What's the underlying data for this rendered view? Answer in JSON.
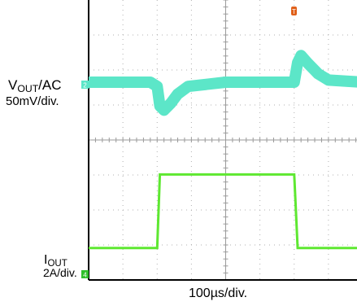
{
  "chart_data": [
    {
      "type": "line",
      "x": [
        -200,
        -110,
        -100,
        -96,
        -90,
        -80,
        -70,
        -55,
        0,
        75,
        100,
        105,
        110,
        120,
        135,
        150,
        200
      ],
      "xlabel": "100µs/div.",
      "xlim": [
        -200,
        200
      ],
      "ylim": [
        -400,
        400
      ],
      "grid": true,
      "series": [
        {
          "name": "VOUT/AC",
          "label_main": "V",
          "label_sub": "OUT",
          "label_suffix": "/AC",
          "scale": "50mV/div.",
          "channel": "2",
          "color": "#5ce6c8",
          "values": [
            0,
            0,
            -6,
            -34,
            -40,
            -30,
            -17,
            -6,
            0,
            0,
            0,
            28,
            38,
            27,
            12,
            3,
            0
          ]
        },
        {
          "name": "IOUT",
          "label_main": "I",
          "label_sub": "OUT",
          "scale": "2A/div.",
          "channel": "4",
          "color": "#5ee831",
          "values": [
            1.5,
            1.5,
            1.5,
            5.7,
            5.7,
            5.7,
            5.7,
            5.7,
            5.7,
            5.7,
            5.7,
            1.5,
            1.5,
            1.5,
            1.5,
            1.5,
            1.5
          ]
        }
      ],
      "trigger_marker": "T",
      "trigger_color": "#e0601a"
    }
  ]
}
